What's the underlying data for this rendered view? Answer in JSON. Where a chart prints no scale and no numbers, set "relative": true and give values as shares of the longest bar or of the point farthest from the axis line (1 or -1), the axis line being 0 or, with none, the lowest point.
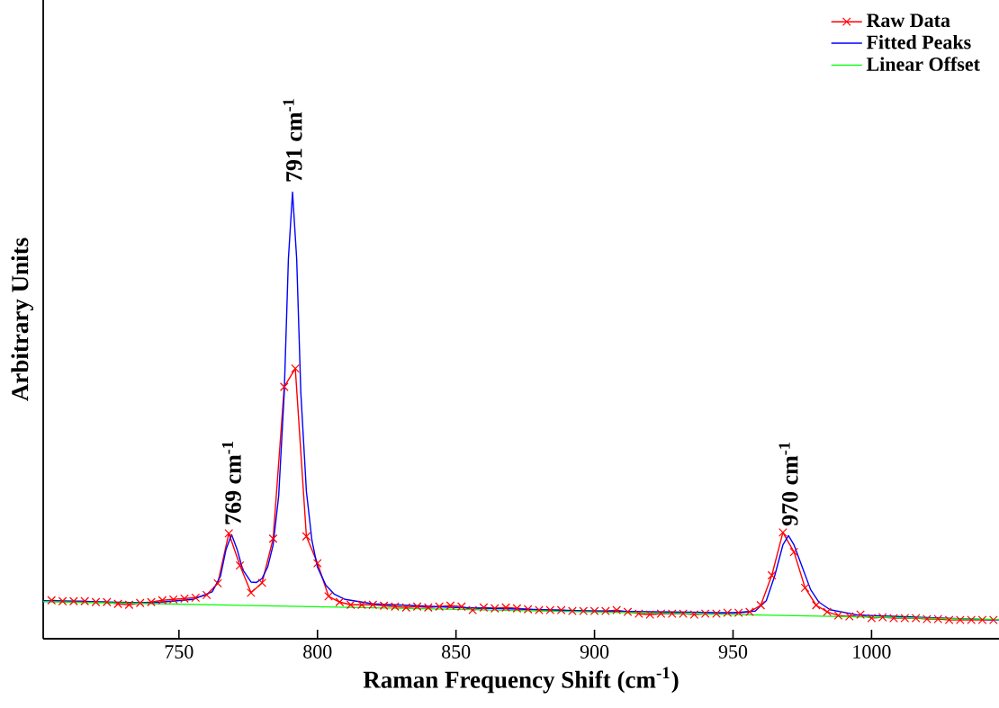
{
  "chart_data": {
    "type": "line",
    "relative": true,
    "xlabel": "Raman Frequency Shift (cm$^{-1}$)",
    "ylabel": "Arbitrary Units",
    "xlim": [
      701,
      1046
    ],
    "xticks": [
      750,
      800,
      850,
      900,
      950,
      1000
    ],
    "legend": "top right",
    "grid": false,
    "annotations": [
      {
        "text": "769 cm$^{-1}$",
        "x": 769,
        "y": 0.233
      },
      {
        "text": "791 cm$^{-1}$",
        "x": 791,
        "y": 1.0
      },
      {
        "text": "970 cm$^{-1}$",
        "x": 970,
        "y": 0.231
      }
    ],
    "series": [
      {
        "name": "Raw Data",
        "color": "#ff0000",
        "marker": "cross",
        "x": [
          704,
          708,
          712,
          716,
          720,
          724,
          728,
          732,
          736,
          740,
          744,
          748,
          752,
          756,
          760,
          764,
          768,
          772,
          776,
          780,
          784,
          788,
          792,
          796,
          800,
          804,
          808,
          812,
          816,
          820,
          824,
          828,
          832,
          836,
          840,
          844,
          848,
          852,
          856,
          860,
          864,
          868,
          872,
          876,
          880,
          884,
          888,
          892,
          896,
          900,
          904,
          908,
          912,
          916,
          920,
          924,
          928,
          932,
          936,
          940,
          944,
          948,
          952,
          956,
          960,
          964,
          968,
          972,
          976,
          980,
          984,
          988,
          992,
          996,
          1000,
          1004,
          1008,
          1012,
          1016,
          1020,
          1024,
          1028,
          1032,
          1036,
          1040,
          1044
        ],
        "values": [
          0.086,
          0.084,
          0.084,
          0.084,
          0.082,
          0.082,
          0.078,
          0.076,
          0.08,
          0.082,
          0.086,
          0.088,
          0.09,
          0.092,
          0.098,
          0.124,
          0.236,
          0.164,
          0.103,
          0.125,
          0.224,
          0.564,
          0.605,
          0.229,
          0.169,
          0.095,
          0.082,
          0.076,
          0.076,
          0.076,
          0.074,
          0.072,
          0.07,
          0.072,
          0.07,
          0.072,
          0.074,
          0.072,
          0.064,
          0.07,
          0.068,
          0.07,
          0.068,
          0.066,
          0.064,
          0.064,
          0.064,
          0.062,
          0.062,
          0.062,
          0.062,
          0.064,
          0.06,
          0.056,
          0.054,
          0.056,
          0.056,
          0.056,
          0.054,
          0.056,
          0.056,
          0.058,
          0.058,
          0.06,
          0.075,
          0.142,
          0.238,
          0.194,
          0.114,
          0.075,
          0.06,
          0.052,
          0.05,
          0.054,
          0.046,
          0.048,
          0.046,
          0.046,
          0.046,
          0.044,
          0.044,
          0.042,
          0.042,
          0.042,
          0.042,
          0.042
        ]
      },
      {
        "name": "Fitted Peaks",
        "color": "#0000ff",
        "marker": "none",
        "x": [
          701,
          740,
          755,
          762,
          765,
          767,
          769,
          771,
          773,
          776,
          778,
          780,
          782,
          784,
          786,
          788,
          789.5,
          791,
          792.5,
          794,
          796,
          798,
          800,
          803,
          806,
          810,
          820,
          850,
          900,
          950,
          958,
          962,
          965,
          968,
          970,
          972,
          975,
          978,
          981,
          985,
          995,
          1046
        ],
        "values": [
          0.085,
          0.08,
          0.088,
          0.105,
          0.14,
          0.2,
          0.233,
          0.2,
          0.155,
          0.127,
          0.126,
          0.135,
          0.16,
          0.21,
          0.32,
          0.55,
          0.85,
          1.0,
          0.85,
          0.55,
          0.33,
          0.22,
          0.16,
          0.12,
          0.1,
          0.088,
          0.078,
          0.07,
          0.062,
          0.058,
          0.062,
          0.085,
          0.14,
          0.21,
          0.231,
          0.21,
          0.16,
          0.11,
          0.082,
          0.065,
          0.053,
          0.042
        ]
      },
      {
        "name": "Linear Offset",
        "color": "#00ff00",
        "marker": "none",
        "x": [
          701,
          1046
        ],
        "values": [
          0.083,
          0.043
        ]
      }
    ]
  }
}
